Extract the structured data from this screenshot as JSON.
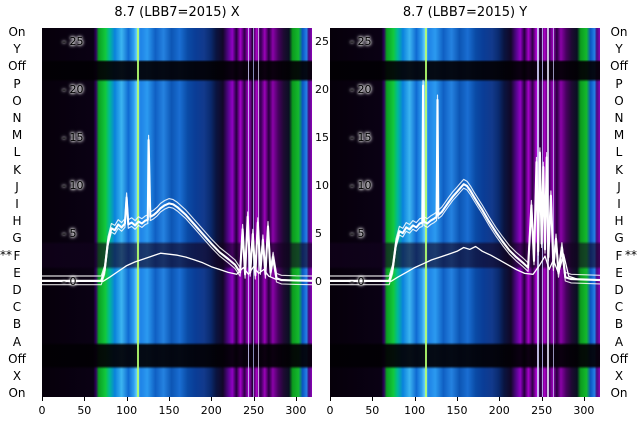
{
  "markers": {
    "left": "**",
    "right": "**"
  },
  "side_labels": {
    "left": [
      "On",
      "Y",
      "Off",
      "P",
      "O",
      "N",
      "M",
      "L",
      "K",
      "J",
      "I",
      "H",
      "G",
      "F",
      "E",
      "D",
      "C",
      "B",
      "A",
      "Off",
      "X",
      "On"
    ],
    "right": [
      "On",
      "Y",
      "Off",
      "P",
      "O",
      "N",
      "M",
      "L",
      "K",
      "J",
      "I",
      "H",
      "G",
      "F",
      "E",
      "D",
      "C",
      "B",
      "A",
      "Off",
      "X",
      "On"
    ]
  },
  "chart_data": {
    "type": "heatmap",
    "subtype": "heatmap with overlaid line traces",
    "trace_color": "#ffffff",
    "x_ticks": [
      0,
      50,
      100,
      150,
      200,
      250,
      300
    ],
    "y_ticks": [
      25,
      20,
      15,
      10,
      5,
      0
    ],
    "x_range": [
      0,
      319
    ],
    "value_range": [
      -12,
      26.5
    ],
    "grid": false,
    "legend": "none",
    "heatmap_bands": [
      [
        0,
        "#06000a"
      ],
      [
        19,
        "#0a0114"
      ],
      [
        20,
        "#30015e"
      ],
      [
        21,
        "#0aa022"
      ],
      [
        23.5,
        "#12c83c"
      ],
      [
        25,
        "#00b996"
      ],
      [
        27,
        "#0a82dc"
      ],
      [
        29.5,
        "#3cb4f0"
      ],
      [
        32,
        "#0f6ad2"
      ],
      [
        34,
        "#2d9ff0"
      ],
      [
        35.2,
        "#6ed2fa"
      ],
      [
        36.5,
        "#1e82e6"
      ],
      [
        39,
        "#2b9af0"
      ],
      [
        42,
        "#0f5fc3"
      ],
      [
        45,
        "#2582e0"
      ],
      [
        48,
        "#0c55b4"
      ],
      [
        51,
        "#1a6ed2"
      ],
      [
        54,
        "#0a4aa5"
      ],
      [
        57,
        "#0a3c96"
      ],
      [
        60,
        "#123a8c"
      ],
      [
        62.5,
        "#0a2a6e"
      ],
      [
        64.5,
        "#0a1440"
      ],
      [
        67,
        "#120728"
      ],
      [
        69,
        "#55058c"
      ],
      [
        70.5,
        "#9102c3"
      ],
      [
        72,
        "#23003c"
      ],
      [
        73.5,
        "#a802cd"
      ],
      [
        75,
        "#2d0046"
      ],
      [
        76.5,
        "#b402d7"
      ],
      [
        78,
        "#1e0032"
      ],
      [
        79.5,
        "#ad02c8"
      ],
      [
        81,
        "#320050"
      ],
      [
        82.5,
        "#9b02b9"
      ],
      [
        84,
        "#28003f"
      ],
      [
        85.5,
        "#8a02a8"
      ],
      [
        87.5,
        "#46015f"
      ],
      [
        89.5,
        "#1e0a32"
      ],
      [
        91.5,
        "#0a0f23"
      ],
      [
        92.8,
        "#0c9b1e"
      ],
      [
        95,
        "#14b92d"
      ],
      [
        96.5,
        "#0a55c3"
      ],
      [
        98,
        "#2582e6"
      ],
      [
        98.8,
        "#4b0a82"
      ],
      [
        100,
        "#8c02b4"
      ]
    ],
    "row_shade_bands": [
      [
        0,
        "rgba(0,0,0,0)"
      ],
      [
        8.6,
        "rgba(0,0,0,0)"
      ],
      [
        9.2,
        "rgba(2,0,4,0.93)"
      ],
      [
        13.8,
        "rgba(2,0,4,0.93)"
      ],
      [
        14.6,
        "rgba(0,0,0,0)"
      ],
      [
        57.8,
        "rgba(0,0,0,0)"
      ],
      [
        58.6,
        "rgba(18,2,30,0.62)"
      ],
      [
        64.6,
        "rgba(18,2,30,0.62)"
      ],
      [
        65.4,
        "rgba(0,0,0,0)"
      ],
      [
        85.2,
        "rgba(0,0,0,0)"
      ],
      [
        86,
        "rgba(2,0,4,0.93)"
      ],
      [
        91.6,
        "rgba(2,0,4,0.93)"
      ],
      [
        92.4,
        "rgba(0,0,0,0)"
      ],
      [
        100,
        "rgba(0,0,0,0)"
      ]
    ],
    "panels": [
      {
        "title": "8.7 (LBB7=2015) X",
        "outer_right": true,
        "vlines": [
          [
            35.2,
            2,
            "#b4ff6e",
            0.9
          ],
          [
            76.3,
            1,
            "#d2d2ff",
            0.8
          ],
          [
            78.1,
            1,
            "#bec3ff",
            0.7
          ],
          [
            80.0,
            1,
            "#e6e6ff",
            0.7
          ]
        ],
        "series": [
          {
            "name": "main-trace",
            "width": 2.1,
            "offsets": [
              0,
              0.5,
              -0.4
            ],
            "values": [
              [
                0,
                0.12
              ],
              [
                70,
                0.12
              ],
              [
                74,
                1.2
              ],
              [
                78,
                4.2
              ],
              [
                82,
                5.6
              ],
              [
                86,
                5.4
              ],
              [
                90,
                6.0
              ],
              [
                94,
                5.7
              ],
              [
                98,
                6.1
              ],
              [
                100,
                8.8
              ],
              [
                102,
                6.0
              ],
              [
                106,
                6.2
              ],
              [
                110,
                5.9
              ],
              [
                114,
                6.3
              ],
              [
                118,
                6.1
              ],
              [
                122,
                6.4
              ],
              [
                125,
                6.5
              ],
              [
                126,
                14.8
              ],
              [
                128,
                6.8
              ],
              [
                132,
                7.0
              ],
              [
                136,
                7.3
              ],
              [
                140,
                7.7
              ],
              [
                145,
                8.0
              ],
              [
                150,
                8.2
              ],
              [
                155,
                8.1
              ],
              [
                160,
                7.8
              ],
              [
                165,
                7.4
              ],
              [
                170,
                7.0
              ],
              [
                175,
                6.5
              ],
              [
                180,
                6.0
              ],
              [
                190,
                5.0
              ],
              [
                200,
                4.0
              ],
              [
                210,
                3.1
              ],
              [
                220,
                2.4
              ],
              [
                228,
                1.8
              ],
              [
                234,
                1.0
              ],
              [
                237,
                5.5
              ],
              [
                240,
                0.8
              ],
              [
                243,
                6.8
              ],
              [
                246,
                1.0
              ],
              [
                249,
                5.0
              ],
              [
                252,
                0.7
              ],
              [
                255,
                6.2
              ],
              [
                258,
                1.2
              ],
              [
                261,
                4.4
              ],
              [
                264,
                0.8
              ],
              [
                267,
                5.8
              ],
              [
                270,
                1.0
              ],
              [
                273,
                2.6
              ],
              [
                277,
                0.4
              ],
              [
                283,
                0.2
              ],
              [
                300,
                0.15
              ],
              [
                319,
                0.12
              ]
            ]
          },
          {
            "name": "secondary-trace",
            "width": 1.3,
            "offsets": [
              0
            ],
            "values": [
              [
                0,
                0.06
              ],
              [
                72,
                0.06
              ],
              [
                80,
                0.5
              ],
              [
                90,
                1.1
              ],
              [
                100,
                1.7
              ],
              [
                110,
                2.1
              ],
              [
                120,
                2.4
              ],
              [
                130,
                2.7
              ],
              [
                140,
                3.0
              ],
              [
                150,
                2.9
              ],
              [
                160,
                2.8
              ],
              [
                170,
                2.6
              ],
              [
                180,
                2.3
              ],
              [
                190,
                2.0
              ],
              [
                200,
                1.6
              ],
              [
                210,
                1.3
              ],
              [
                220,
                1.0
              ],
              [
                230,
                0.8
              ],
              [
                238,
                1.5
              ],
              [
                244,
                0.8
              ],
              [
                250,
                1.6
              ],
              [
                256,
                0.9
              ],
              [
                262,
                1.3
              ],
              [
                268,
                0.6
              ],
              [
                276,
                0.3
              ],
              [
                290,
                0.2
              ],
              [
                319,
                0.15
              ]
            ]
          }
        ]
      },
      {
        "title": "8.7 (LBB7=2015) Y",
        "outer_right": false,
        "vlines": [
          [
            35.2,
            2,
            "#b4ff6e",
            0.9
          ],
          [
            76.5,
            2,
            "#d7d7ff",
            0.85
          ],
          [
            78.5,
            1,
            "#c3c8ff",
            0.8
          ],
          [
            80.5,
            2,
            "#eeeeff",
            0.8
          ],
          [
            82.5,
            1,
            "#cdd2ff",
            0.7
          ]
        ],
        "series": [
          {
            "name": "main-trace",
            "width": 2.1,
            "offsets": [
              0,
              0.5,
              -0.4
            ],
            "values": [
              [
                0,
                0.12
              ],
              [
                70,
                0.12
              ],
              [
                74,
                1.3
              ],
              [
                78,
                4.0
              ],
              [
                82,
                5.3
              ],
              [
                86,
                5.1
              ],
              [
                90,
                5.7
              ],
              [
                94,
                5.5
              ],
              [
                98,
                5.9
              ],
              [
                102,
                5.7
              ],
              [
                106,
                6.1
              ],
              [
                109,
                6.2
              ],
              [
                110,
                20.5
              ],
              [
                111,
                6.3
              ],
              [
                115,
                6.1
              ],
              [
                119,
                6.4
              ],
              [
                123,
                6.6
              ],
              [
                126,
                6.8
              ],
              [
                127,
                19.0
              ],
              [
                128,
                7.0
              ],
              [
                132,
                7.3
              ],
              [
                136,
                7.8
              ],
              [
                140,
                8.3
              ],
              [
                145,
                8.9
              ],
              [
                150,
                9.4
              ],
              [
                154,
                9.8
              ],
              [
                158,
                10.2
              ],
              [
                162,
                10.0
              ],
              [
                166,
                9.5
              ],
              [
                170,
                8.9
              ],
              [
                175,
                8.2
              ],
              [
                180,
                7.5
              ],
              [
                188,
                6.3
              ],
              [
                196,
                5.2
              ],
              [
                204,
                4.2
              ],
              [
                212,
                3.3
              ],
              [
                220,
                2.6
              ],
              [
                228,
                2.0
              ],
              [
                234,
                1.5
              ],
              [
                238,
                8.0
              ],
              [
                241,
                2.2
              ],
              [
                244,
                12.5
              ],
              [
                246,
                3.2
              ],
              [
                248,
                13.5
              ],
              [
                250,
                4.0
              ],
              [
                252,
                12.0
              ],
              [
                254,
                3.4
              ],
              [
                256,
                13.0
              ],
              [
                258,
                2.6
              ],
              [
                261,
                9.0
              ],
              [
                264,
                1.6
              ],
              [
                267,
                4.5
              ],
              [
                270,
                0.9
              ],
              [
                274,
                3.6
              ],
              [
                278,
                0.5
              ],
              [
                285,
                0.3
              ],
              [
                319,
                0.2
              ]
            ]
          },
          {
            "name": "secondary-trace",
            "width": 1.3,
            "offsets": [
              0
            ],
            "values": [
              [
                0,
                0.06
              ],
              [
                72,
                0.06
              ],
              [
                80,
                0.5
              ],
              [
                90,
                1.0
              ],
              [
                100,
                1.5
              ],
              [
                110,
                1.9
              ],
              [
                120,
                2.3
              ],
              [
                130,
                2.6
              ],
              [
                140,
                2.9
              ],
              [
                150,
                3.2
              ],
              [
                158,
                3.6
              ],
              [
                165,
                3.4
              ],
              [
                172,
                3.7
              ],
              [
                180,
                3.2
              ],
              [
                190,
                2.8
              ],
              [
                200,
                2.3
              ],
              [
                210,
                1.8
              ],
              [
                220,
                1.3
              ],
              [
                230,
                0.9
              ],
              [
                240,
                0.8
              ],
              [
                248,
                1.8
              ],
              [
                254,
                2.7
              ],
              [
                259,
                1.3
              ],
              [
                264,
                2.3
              ],
              [
                270,
                0.9
              ],
              [
                276,
                2.9
              ],
              [
                282,
                0.6
              ],
              [
                292,
                0.3
              ],
              [
                319,
                0.2
              ]
            ]
          }
        ]
      }
    ]
  }
}
